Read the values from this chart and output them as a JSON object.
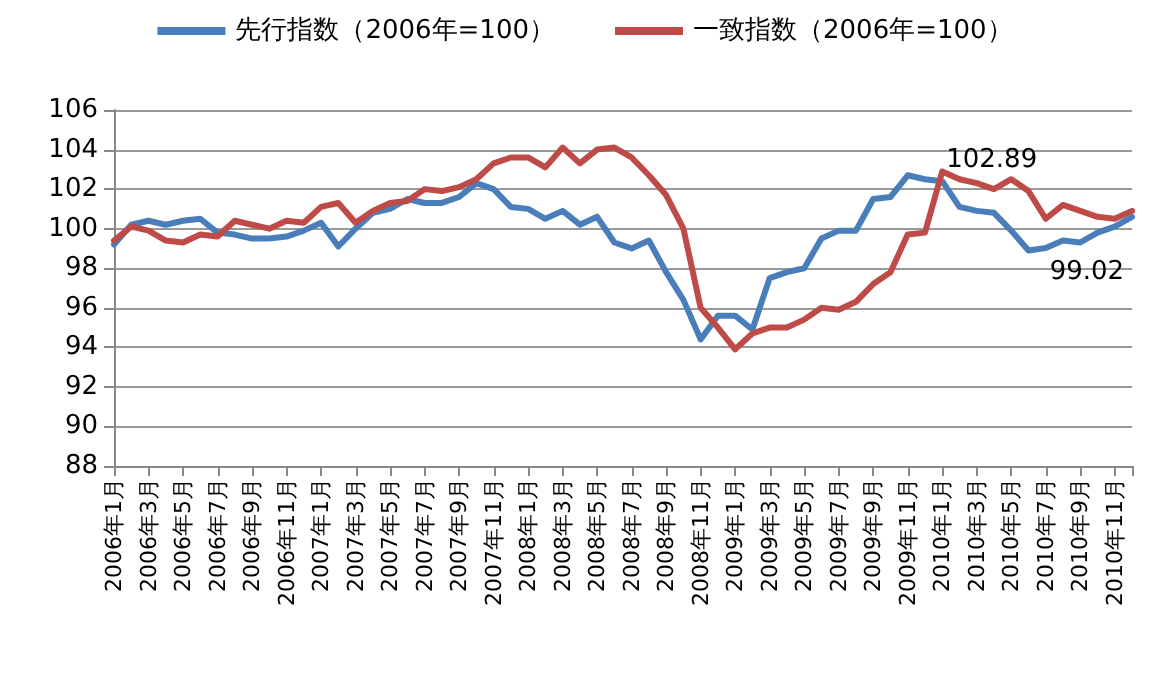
{
  "chart_data": {
    "type": "line",
    "categories": [
      "2006年1月",
      null,
      "2006年3月",
      null,
      "2006年5月",
      null,
      "2006年7月",
      null,
      "2006年9月",
      null,
      "2006年11月",
      null,
      "2007年1月",
      null,
      "2007年3月",
      null,
      "2007年5月",
      null,
      "2007年7月",
      null,
      "2007年9月",
      null,
      "2007年11月",
      null,
      "2008年1月",
      null,
      "2008年3月",
      null,
      "2008年5月",
      null,
      "2008年7月",
      null,
      "2008年9月",
      null,
      "2008年11月",
      null,
      "2009年1月",
      null,
      "2009年3月",
      null,
      "2009年5月",
      null,
      "2009年7月",
      null,
      "2009年9月",
      null,
      "2009年11月",
      null,
      "2010年1月",
      null,
      "2010年3月",
      null,
      "2010年5月",
      null,
      "2010年7月",
      null,
      "2010年9月",
      null,
      "2010年11月",
      null
    ],
    "series": [
      {
        "name": "先行指数（2006年=100）",
        "color": "#4a7ebb",
        "values": [
          99.2,
          100.2,
          100.4,
          100.2,
          100.4,
          100.5,
          99.8,
          99.7,
          99.5,
          99.5,
          99.6,
          99.9,
          100.3,
          99.1,
          100.0,
          100.8,
          101.0,
          101.5,
          101.3,
          101.3,
          101.6,
          102.3,
          102.0,
          101.1,
          101.0,
          100.5,
          100.9,
          100.2,
          100.6,
          99.3,
          99.0,
          99.4,
          97.8,
          96.4,
          94.4,
          95.6,
          95.6,
          94.9,
          97.5,
          97.8,
          98.0,
          99.5,
          99.9,
          99.9,
          101.5,
          101.6,
          102.7,
          102.5,
          102.4,
          101.1,
          100.9,
          100.8,
          99.9,
          98.9,
          99.02,
          99.4,
          99.3,
          99.8,
          100.1,
          100.6
        ],
        "value_labels": [
          null,
          null,
          null,
          null,
          null,
          null,
          null,
          null,
          null,
          null,
          null,
          null,
          null,
          null,
          null,
          null,
          null,
          null,
          null,
          null,
          null,
          null,
          null,
          null,
          null,
          null,
          null,
          null,
          null,
          null,
          null,
          null,
          null,
          null,
          null,
          null,
          null,
          null,
          null,
          null,
          null,
          null,
          null,
          null,
          null,
          null,
          null,
          null,
          null,
          null,
          null,
          null,
          null,
          null,
          "99.02",
          null,
          null,
          null,
          null,
          null
        ]
      },
      {
        "name": "一致指数（2006年=100）",
        "color": "#be4b48",
        "values": [
          99.4,
          100.1,
          99.9,
          99.4,
          99.3,
          99.7,
          99.6,
          100.4,
          100.2,
          100.0,
          100.4,
          100.3,
          101.1,
          101.3,
          100.3,
          100.9,
          101.3,
          101.4,
          102.0,
          101.9,
          102.1,
          102.5,
          103.3,
          103.6,
          103.6,
          103.1,
          104.1,
          103.3,
          104.0,
          104.1,
          103.6,
          102.7,
          101.7,
          100.0,
          96.0,
          95.0,
          93.9,
          94.7,
          95.0,
          95.0,
          95.4,
          96.0,
          95.9,
          96.3,
          97.2,
          97.8,
          99.7,
          99.8,
          102.89,
          102.5,
          102.3,
          102.0,
          102.5,
          101.9,
          100.5,
          101.2,
          100.9,
          100.6,
          100.5,
          100.9
        ],
        "value_labels": [
          null,
          null,
          null,
          null,
          null,
          null,
          null,
          null,
          null,
          null,
          null,
          null,
          null,
          null,
          null,
          null,
          null,
          null,
          null,
          null,
          null,
          null,
          null,
          null,
          null,
          null,
          null,
          null,
          null,
          null,
          null,
          null,
          null,
          null,
          null,
          null,
          null,
          null,
          null,
          null,
          null,
          null,
          null,
          null,
          null,
          null,
          null,
          null,
          "102.89",
          null,
          null,
          null,
          null,
          null,
          null,
          null,
          null,
          null,
          null,
          null
        ]
      }
    ],
    "ylim": [
      88,
      106
    ],
    "yticks": [
      88,
      90,
      92,
      94,
      96,
      98,
      100,
      102,
      104,
      106
    ],
    "grid": "y",
    "legend": "top",
    "marker": "none",
    "line_style": "solid"
  }
}
